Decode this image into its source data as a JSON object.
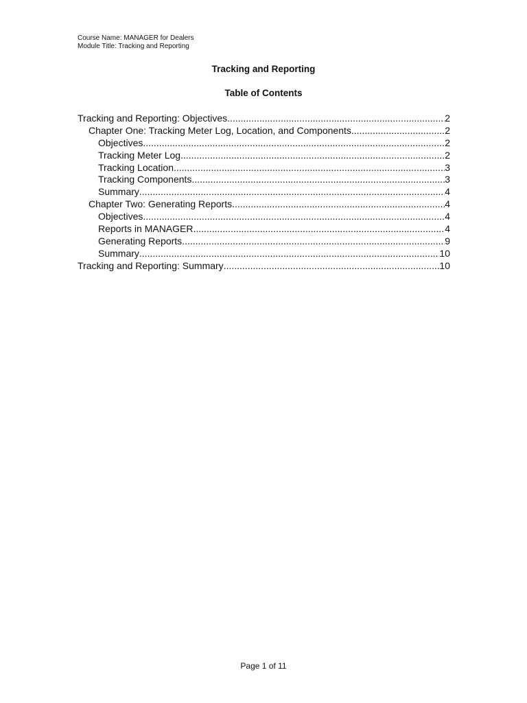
{
  "header": {
    "course_name": "Course Name: MANAGER for Dealers",
    "module_title": "Module Title:  Tracking and Reporting"
  },
  "document_title": "Tracking and Reporting",
  "toc_title": "Table of Contents",
  "toc": [
    {
      "level": 1,
      "label": "Tracking and Reporting: Objectives",
      "page": "2"
    },
    {
      "level": 2,
      "label": "Chapter One: Tracking Meter Log, Location, and Components",
      "page": "2"
    },
    {
      "level": 3,
      "label": "Objectives",
      "page": "2"
    },
    {
      "level": 3,
      "label": "Tracking Meter Log",
      "page": "2"
    },
    {
      "level": 3,
      "label": "Tracking Location",
      "page": "3"
    },
    {
      "level": 3,
      "label": "Tracking Components",
      "page": "3"
    },
    {
      "level": 3,
      "label": "Summary",
      "page": "4"
    },
    {
      "level": 2,
      "label": "Chapter Two: Generating Reports",
      "page": "4"
    },
    {
      "level": 3,
      "label": "Objectives",
      "page": "4"
    },
    {
      "level": 3,
      "label": "Reports in MANAGER",
      "page": "4"
    },
    {
      "level": 3,
      "label": "Generating Reports",
      "page": "9"
    },
    {
      "level": 3,
      "label": "Summary",
      "page": "10"
    },
    {
      "level": 1,
      "label": "Tracking and Reporting: Summary",
      "page": "10"
    }
  ],
  "footer": "Page 1 of 11"
}
